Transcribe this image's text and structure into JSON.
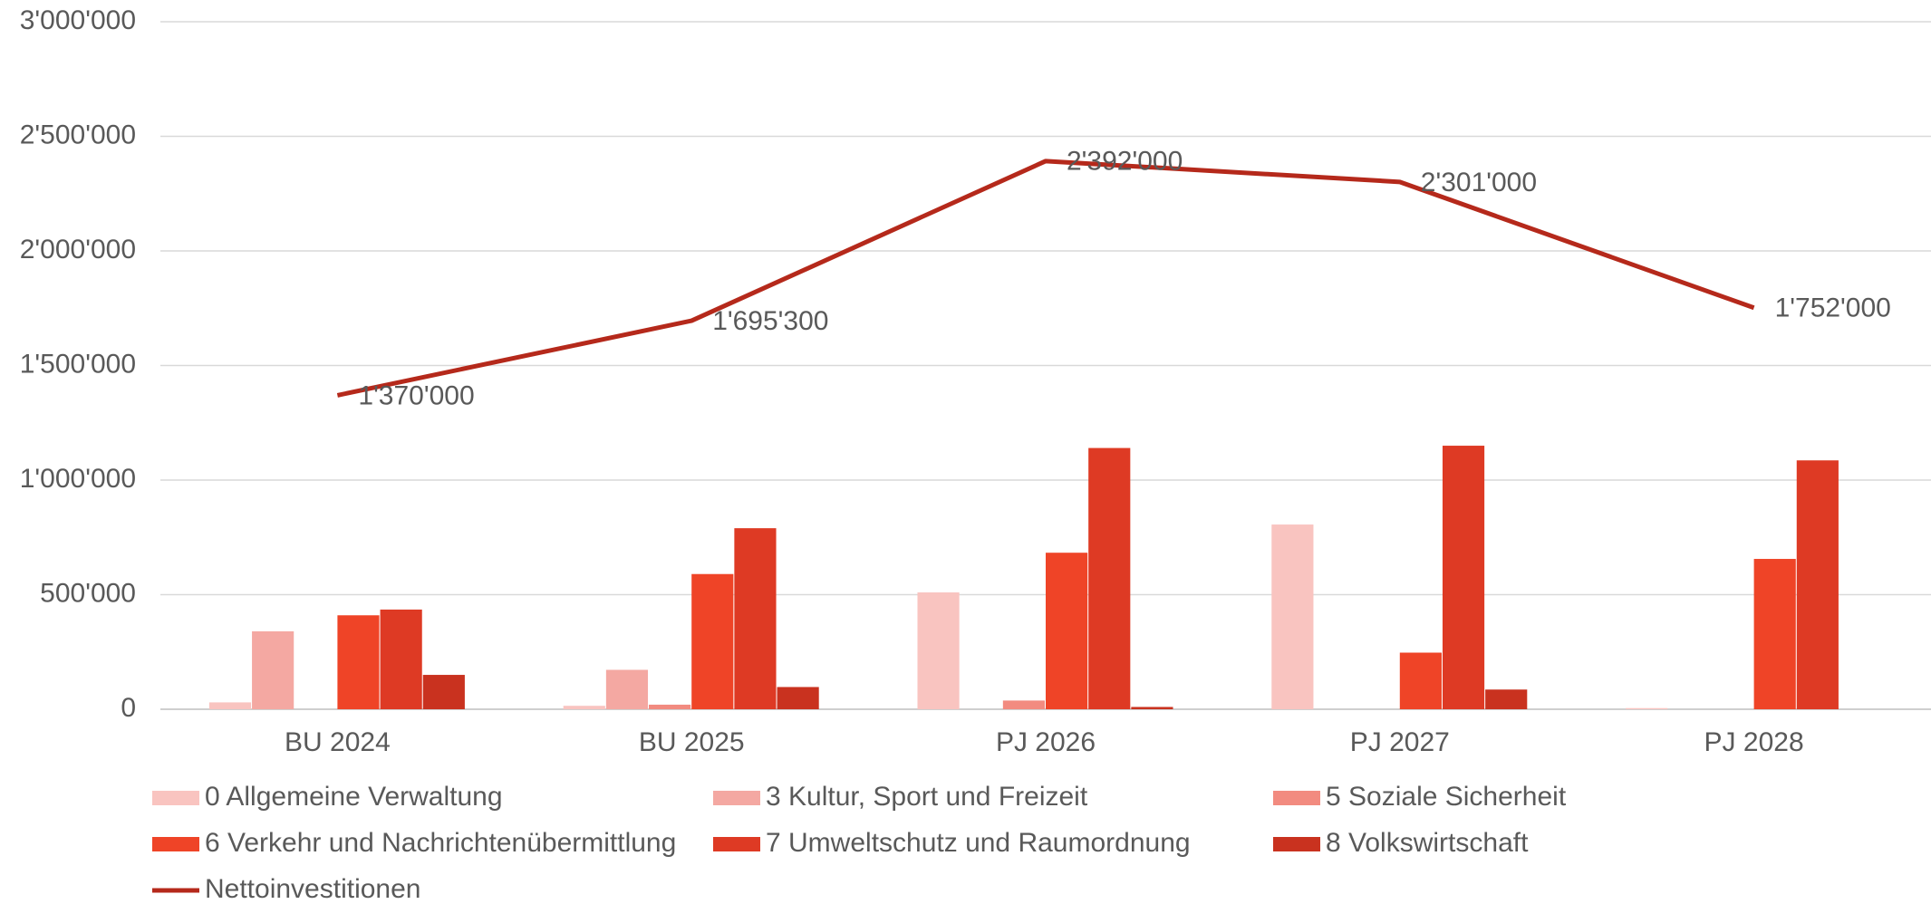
{
  "chart_data": {
    "type": "bar",
    "categories": [
      "BU 2024",
      "BU 2025",
      "PJ 2026",
      "PJ 2027",
      "PJ 2028"
    ],
    "series": [
      {
        "name": "0 Allgemeine Verwaltung",
        "color": "#f9c4c0",
        "values": [
          30000,
          15000,
          510000,
          806000,
          5000
        ]
      },
      {
        "name": "3 Kultur, Sport und Freizeit",
        "color": "#f4a8a2",
        "values": [
          340000,
          172000,
          0,
          0,
          0
        ]
      },
      {
        "name": "5 Soziale Sicherheit",
        "color": "#f28b80",
        "values": [
          0,
          20000,
          38000,
          0,
          0
        ]
      },
      {
        "name": "6 Verkehr und Nachrichtenübermittlung",
        "color": "#ef4427",
        "values": [
          410000,
          590000,
          683000,
          247000,
          656000
        ]
      },
      {
        "name": "7 Umweltschutz und Raumordnung",
        "color": "#de3a24",
        "values": [
          435000,
          790000,
          1140000,
          1150000,
          1086000
        ]
      },
      {
        "name": "8 Volkswirtschaft",
        "color": "#c9321f",
        "values": [
          150000,
          97000,
          10000,
          86000,
          0
        ]
      },
      {
        "name": "Nettoinvestitionen",
        "color": "#b5291b",
        "type": "line",
        "values": [
          1370000,
          1695300,
          2392000,
          2301000,
          1752000
        ],
        "value_labels": [
          "1'370'000",
          "1'695'300",
          "2'392'000",
          "2'301'000",
          "1'752'000"
        ]
      }
    ],
    "ylim": [
      0,
      3000000
    ],
    "yticks": [
      0,
      {
        "value": 500000,
        "label": "500'000"
      },
      {
        "value": 1000000,
        "label": "1'000'000"
      },
      {
        "value": 1500000,
        "label": "1'500'000"
      },
      {
        "value": 2000000,
        "label": "2'000'000"
      },
      {
        "value": 2500000,
        "label": "2'500'000"
      },
      {
        "value": 3000000,
        "label": "3'000'000"
      }
    ],
    "grid": true,
    "legend": "bottom"
  }
}
